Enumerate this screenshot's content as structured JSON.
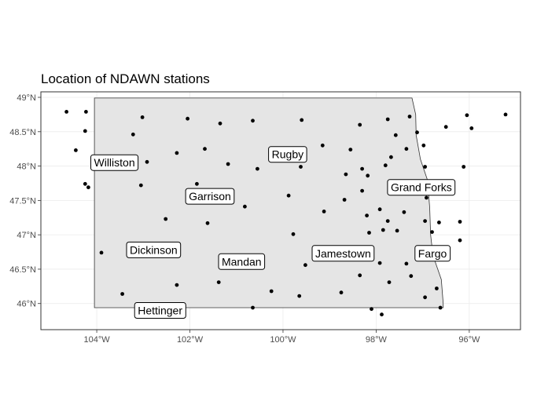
{
  "title": "Location of NDAWN stations",
  "colors": {
    "state_fill": "#e5e5e5",
    "state_border": "#333333",
    "point": "#000000",
    "panel_border": "#333333",
    "grid": "#ebebeb"
  },
  "axes": {
    "x_ticks": [
      {
        "value": -104,
        "label": "104°W"
      },
      {
        "value": -102,
        "label": "102°W"
      },
      {
        "value": -100,
        "label": "100°W"
      },
      {
        "value": -98,
        "label": "98°W"
      },
      {
        "value": -96,
        "label": "96°W"
      }
    ],
    "y_ticks": [
      {
        "value": 49.0,
        "label": "49°N"
      },
      {
        "value": 48.5,
        "label": "48.5°N"
      },
      {
        "value": 48.0,
        "label": "48°N"
      },
      {
        "value": 47.5,
        "label": "47.5°N"
      },
      {
        "value": 47.0,
        "label": "47°N"
      },
      {
        "value": 46.5,
        "label": "46.5°N"
      },
      {
        "value": 46.0,
        "label": "46°N"
      }
    ],
    "xlim": [
      -105.2,
      -94.9
    ],
    "ylim": [
      45.62,
      49.08
    ],
    "grid": true
  },
  "state_outline": [
    [
      -104.05,
      48.99
    ],
    [
      -97.23,
      48.99
    ],
    [
      -97.15,
      48.75
    ],
    [
      -97.14,
      48.45
    ],
    [
      -97.05,
      48.1
    ],
    [
      -96.9,
      47.8
    ],
    [
      -96.85,
      47.4
    ],
    [
      -96.83,
      47.0
    ],
    [
      -96.78,
      46.7
    ],
    [
      -96.6,
      46.35
    ],
    [
      -96.56,
      46.0
    ],
    [
      -96.56,
      45.94
    ],
    [
      -100.0,
      45.94
    ],
    [
      -104.05,
      45.94
    ],
    [
      -104.05,
      48.99
    ]
  ],
  "cities": [
    {
      "name": "Williston",
      "lon": -103.62,
      "lat": 48.05
    },
    {
      "name": "Rugby",
      "lon": -99.9,
      "lat": 48.17
    },
    {
      "name": "Garrison",
      "lon": -101.57,
      "lat": 47.56
    },
    {
      "name": "Grand Forks",
      "lon": -97.03,
      "lat": 47.69
    },
    {
      "name": "Dickinson",
      "lon": -102.78,
      "lat": 46.78
    },
    {
      "name": "Mandan",
      "lon": -100.89,
      "lat": 46.61
    },
    {
      "name": "Jamestown",
      "lon": -98.71,
      "lat": 46.73
    },
    {
      "name": "Fargo",
      "lon": -96.79,
      "lat": 46.73
    },
    {
      "name": "Hettinger",
      "lon": -102.64,
      "lat": 45.9
    }
  ],
  "stations": [
    [
      -104.65,
      48.79
    ],
    [
      -104.23,
      48.79
    ],
    [
      -104.25,
      48.51
    ],
    [
      -104.45,
      48.23
    ],
    [
      -104.25,
      47.74
    ],
    [
      -104.18,
      47.69
    ],
    [
      -103.9,
      46.74
    ],
    [
      -103.45,
      46.14
    ],
    [
      -103.22,
      48.46
    ],
    [
      -103.02,
      48.71
    ],
    [
      -102.92,
      48.06
    ],
    [
      -103.05,
      47.72
    ],
    [
      -102.52,
      47.23
    ],
    [
      -102.28,
      48.19
    ],
    [
      -102.05,
      48.69
    ],
    [
      -101.85,
      47.74
    ],
    [
      -101.68,
      48.25
    ],
    [
      -101.62,
      47.17
    ],
    [
      -101.35,
      48.62
    ],
    [
      -101.18,
      48.03
    ],
    [
      -100.82,
      47.41
    ],
    [
      -100.65,
      48.66
    ],
    [
      -100.55,
      47.96
    ],
    [
      -99.88,
      47.57
    ],
    [
      -99.6,
      48.67
    ],
    [
      -99.78,
      47.01
    ],
    [
      -99.62,
      47.99
    ],
    [
      -99.15,
      48.3
    ],
    [
      -99.12,
      47.34
    ],
    [
      -98.55,
      48.24
    ],
    [
      -98.35,
      48.6
    ],
    [
      -98.65,
      47.88
    ],
    [
      -98.3,
      47.64
    ],
    [
      -98.68,
      47.51
    ],
    [
      -98.18,
      47.86
    ],
    [
      -98.2,
      47.28
    ],
    [
      -98.15,
      47.03
    ],
    [
      -97.92,
      47.37
    ],
    [
      -97.85,
      47.07
    ],
    [
      -97.75,
      48.68
    ],
    [
      -97.8,
      48.01
    ],
    [
      -97.68,
      48.13
    ],
    [
      -97.58,
      48.45
    ],
    [
      -97.75,
      47.2
    ],
    [
      -97.55,
      47.06
    ],
    [
      -97.4,
      47.33
    ],
    [
      -97.28,
      48.72
    ],
    [
      -97.35,
      48.25
    ],
    [
      -97.12,
      48.49
    ],
    [
      -96.98,
      48.3
    ],
    [
      -96.95,
      47.99
    ],
    [
      -96.92,
      47.54
    ],
    [
      -96.95,
      47.2
    ],
    [
      -96.8,
      47.04
    ],
    [
      -96.65,
      47.18
    ],
    [
      -96.5,
      48.57
    ],
    [
      -96.05,
      48.74
    ],
    [
      -95.95,
      48.55
    ],
    [
      -96.12,
      47.99
    ],
    [
      -96.2,
      47.19
    ],
    [
      -96.2,
      46.92
    ],
    [
      -95.22,
      48.75
    ],
    [
      -97.35,
      46.58
    ],
    [
      -97.25,
      46.4
    ],
    [
      -96.7,
      46.22
    ],
    [
      -96.95,
      46.09
    ],
    [
      -96.62,
      45.94
    ],
    [
      -97.72,
      46.31
    ],
    [
      -97.92,
      46.59
    ],
    [
      -98.35,
      46.41
    ],
    [
      -98.75,
      46.16
    ],
    [
      -98.1,
      45.92
    ],
    [
      -97.88,
      45.84
    ],
    [
      -99.52,
      46.56
    ],
    [
      -99.65,
      46.11
    ],
    [
      -100.25,
      46.18
    ],
    [
      -100.65,
      45.94
    ],
    [
      -101.38,
      46.31
    ],
    [
      -102.28,
      46.27
    ],
    [
      -98.3,
      47.96
    ]
  ]
}
